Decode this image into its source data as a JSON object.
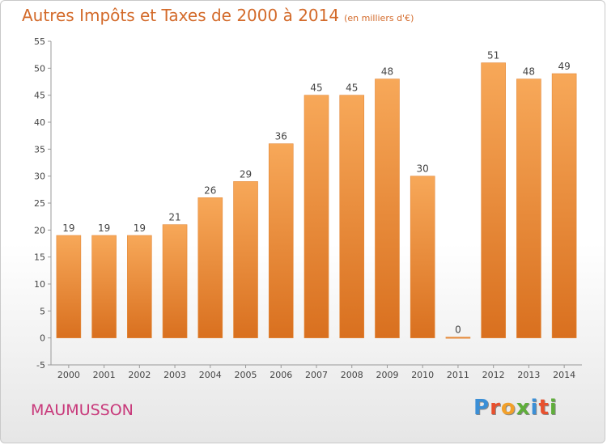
{
  "header": {
    "title": "Autres Impôts et Taxes de 2000 à 2014",
    "unit": "(en milliers d'€)"
  },
  "footer": {
    "commune": "MAUMUSSON",
    "brand": "Proxiti"
  },
  "colors": {
    "bar_light": "#f7a859",
    "bar_dark": "#d9701f",
    "title": "#d36a2a",
    "commune": "#c8387a"
  },
  "chart_data": {
    "type": "bar",
    "title": "Autres Impôts et Taxes de 2000 à 2014",
    "subtitle": "(en milliers d'€)",
    "xlabel": "",
    "ylabel": "",
    "categories": [
      "2000",
      "2001",
      "2002",
      "2003",
      "2004",
      "2005",
      "2006",
      "2007",
      "2008",
      "2009",
      "2010",
      "2011",
      "2012",
      "2013",
      "2014"
    ],
    "values": [
      19,
      19,
      19,
      21,
      26,
      29,
      36,
      45,
      45,
      48,
      30,
      0,
      51,
      48,
      49
    ],
    "ylim": [
      -5,
      55
    ],
    "yticks": [
      -5,
      0,
      5,
      10,
      15,
      20,
      25,
      30,
      35,
      40,
      45,
      50,
      55
    ],
    "grid": false,
    "legend": "none"
  }
}
